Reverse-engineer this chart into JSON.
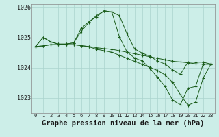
{
  "title": "Graphe pression niveau de la mer (hPa)",
  "background_color": "#cceee8",
  "grid_color": "#aad4ce",
  "line_color": "#1a5c1a",
  "hours": [
    0,
    1,
    2,
    3,
    4,
    5,
    6,
    7,
    8,
    9,
    10,
    11,
    12,
    13,
    14,
    15,
    16,
    17,
    18,
    19,
    20,
    21,
    22,
    23
  ],
  "series": [
    [
      1024.7,
      1025.0,
      1024.85,
      1024.78,
      1024.78,
      1024.82,
      1025.2,
      1025.5,
      1025.72,
      1025.88,
      1025.84,
      1025.72,
      1025.12,
      1024.62,
      1024.48,
      1024.38,
      1024.22,
      1024.12,
      1023.92,
      1023.78,
      1024.18,
      1024.18,
      1024.18,
      1024.12
    ],
    [
      1024.7,
      1025.0,
      1024.85,
      1024.78,
      1024.78,
      1024.82,
      1025.3,
      1025.52,
      1025.68,
      1025.88,
      1025.84,
      1025.02,
      1024.52,
      1024.32,
      1024.22,
      1023.98,
      1023.68,
      1023.38,
      1022.92,
      1022.78,
      1023.32,
      1023.38,
      1024.12,
      1024.12
    ],
    [
      1024.7,
      1024.72,
      1024.76,
      1024.76,
      1024.76,
      1024.76,
      1024.73,
      1024.7,
      1024.66,
      1024.63,
      1024.61,
      1024.56,
      1024.51,
      1024.46,
      1024.41,
      1024.36,
      1024.31,
      1024.26,
      1024.21,
      1024.19,
      1024.16,
      1024.13,
      1024.11,
      1024.11
    ],
    [
      1024.7,
      1024.72,
      1024.76,
      1024.76,
      1024.76,
      1024.76,
      1024.73,
      1024.69,
      1024.61,
      1024.56,
      1024.51,
      1024.41,
      1024.31,
      1024.21,
      1024.11,
      1024.01,
      1023.91,
      1023.76,
      1023.51,
      1023.11,
      1022.76,
      1022.86,
      1023.66,
      1024.11
    ]
  ],
  "ylim": [
    1022.5,
    1026.1
  ],
  "yticks": [
    1023,
    1024,
    1025,
    1026
  ],
  "title_fontsize": 7.5
}
